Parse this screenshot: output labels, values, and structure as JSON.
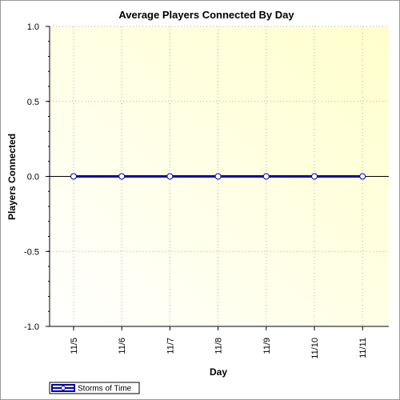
{
  "chart_data": {
    "type": "line",
    "title": "Average Players Connected By Day",
    "xlabel": "Day",
    "ylabel": "Players Connected",
    "categories": [
      "11/5",
      "11/6",
      "11/7",
      "11/8",
      "11/9",
      "11/10",
      "11/11"
    ],
    "series": [
      {
        "name": "Storms of Time",
        "values": [
          0,
          0,
          0,
          0,
          0,
          0,
          0
        ],
        "color": "#0000aa"
      }
    ],
    "ylim": [
      -1.0,
      1.0
    ],
    "yticks": [
      "-1.0",
      "-0.5",
      "0.0",
      "0.5",
      "1.0"
    ],
    "grid": true,
    "legend": "bottom-left",
    "background_gradient": [
      "#ffffe0",
      "#fffff8"
    ]
  }
}
